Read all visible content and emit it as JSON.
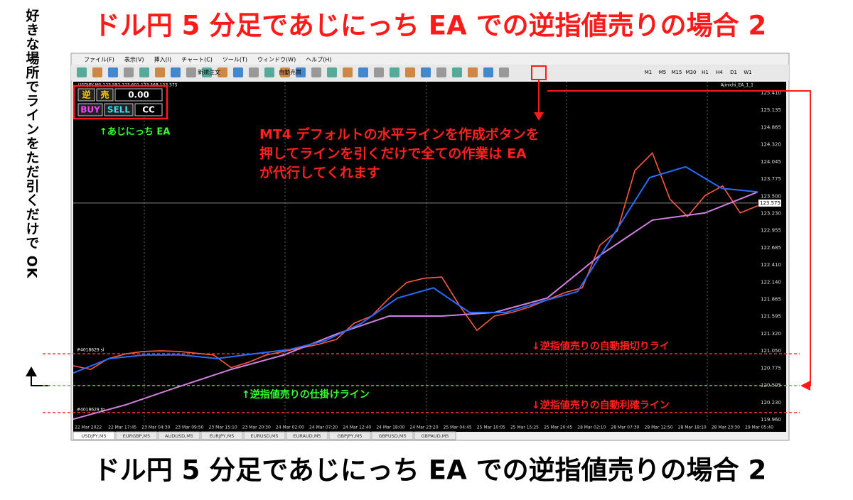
{
  "title_top": "ドル円 5 分足であじにっち EA での逆指値売りの場合 2",
  "title_bottom": "ドル円 5 分足であじにっち EA での逆指値売りの場合 2",
  "side_note": "好きな場所でラインをただ引くだけで OK",
  "menu": [
    "ファイル(F)",
    "表示(V)",
    "挿入(I)",
    "チャート(C)",
    "ツール(T)",
    "ウィンドウ(W)",
    "ヘルプ(H)"
  ],
  "toolbar": {
    "new_order": "新規注文",
    "auto_trade": "自動売買",
    "timeframes": [
      "M1",
      "M5",
      "M15",
      "M30",
      "H1",
      "H4",
      "D1",
      "W1"
    ]
  },
  "chart_header": {
    "symbol": "USDJPY,M5 123.582 123.601 123.568 123.575",
    "ea": "Ajinichi_EA_1_1"
  },
  "ea_panel": {
    "labels": [
      "逆",
      "売"
    ],
    "value": "0.00",
    "buttons": [
      "BUY",
      "SELL",
      "CC"
    ]
  },
  "annotations": {
    "ea": "↑あじにっち EA",
    "note": [
      "MT4 デフォルトの水平ラインを作成ボタンを",
      "押してラインを引くだけで全ての作業は EA",
      "が代行してくれます"
    ],
    "stop_loss": "↓逆指値売りの自動損切りライ",
    "entry": "↑逆指値売りの仕掛けライン",
    "take_profit": "↓逆指値売りの自動利確ライン"
  },
  "order_labels": {
    "sl": "#4018629 sl",
    "tp": "#4018629 tp"
  },
  "chart": {
    "ylim": [
      119.96,
      125.41
    ],
    "price_labels": [
      "125.410",
      "125.135",
      "124.865",
      "124.320",
      "124.045",
      "123.775",
      "123.500",
      "123.230",
      "122.955",
      "122.685",
      "122.410",
      "122.140",
      "121.865",
      "121.595",
      "121.320",
      "121.050",
      "120.775",
      "120.505",
      "120.230",
      "119.960"
    ],
    "time_labels": [
      "22 Mar 2022",
      "22 Mar 17:45",
      "23 Mar 04:30",
      "23 Mar 09:50",
      "23 Mar 15:10",
      "23 Mar 20:30",
      "24 Mar 02:00",
      "24 Mar 07:20",
      "24 Mar 12:40",
      "24 Mar 18:00",
      "24 Mar 23:20",
      "25 Mar 04:45",
      "25 Mar 10:05",
      "25 Mar 15:25",
      "25 Mar 20:45",
      "28 Mar 02:10",
      "28 Mar 07:30",
      "28 Mar 12:50",
      "28 Mar 18:10",
      "28 Mar 23:30",
      "29 Mar 05:40"
    ],
    "current_price": 123.575,
    "levels": [
      {
        "price": 121.06,
        "color": "#ff3030"
      },
      {
        "price": 120.53,
        "color": "#33dd33"
      },
      {
        "price": 120.08,
        "color": "#ff3030"
      }
    ],
    "series": [
      {
        "color": "#ff5a3c",
        "values": [
          120.86,
          120.8,
          120.98,
          121.06,
          121.1,
          121.11,
          121.1,
          121.07,
          121.04,
          120.83,
          120.92,
          121.04,
          121.1,
          121.16,
          121.22,
          121.3,
          121.57,
          121.69,
          121.99,
          122.25,
          122.32,
          122.34,
          121.87,
          121.45,
          121.69,
          121.75,
          121.84,
          121.96,
          122.08,
          122.16,
          122.87,
          123.11,
          124.12,
          124.41,
          123.64,
          123.35,
          123.7,
          123.86,
          123.41,
          123.53
        ]
      },
      {
        "color": "#d080e0",
        "values": [
          119.97,
          120.21,
          120.51,
          120.8,
          121.04,
          121.39,
          121.69,
          121.69,
          121.75,
          121.99,
          122.7,
          123.29,
          123.41,
          123.76
        ]
      },
      {
        "color": "#2a6cff",
        "values": [
          120.74,
          120.98,
          121.04,
          121.04,
          120.98,
          121.06,
          121.13,
          121.28,
          121.57,
          121.99,
          122.16,
          121.75,
          121.75,
          121.93,
          122.1,
          123.05,
          124.0,
          124.18,
          123.82,
          123.76
        ]
      }
    ]
  },
  "tabs": [
    "USDJPY,M5",
    "EURGBP,M5",
    "AUDUSD,M5",
    "EURJPY,M5",
    "EURUSD,M5",
    "EURAUD,M5",
    "GBPJPY,M5",
    "GBPUSD,M5",
    "GBPAUD,M5"
  ]
}
